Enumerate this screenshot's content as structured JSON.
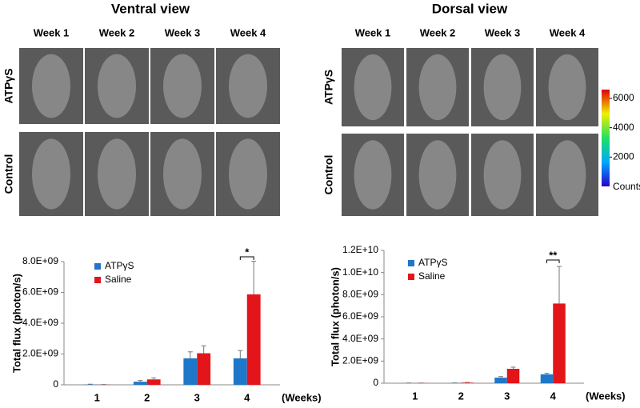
{
  "panels": {
    "ventral_title": "Ventral view",
    "dorsal_title": "Dorsal view",
    "weeks": [
      "Week 1",
      "Week 2",
      "Week 3",
      "Week 4"
    ],
    "rows": [
      "ATPγS",
      "Control"
    ],
    "colorbar": {
      "lim": [
        0,
        6600
      ],
      "ticks": [
        2000,
        4000,
        6000
      ],
      "label": "Counts"
    }
  },
  "chart_data": [
    {
      "type": "bar",
      "ylabel": "Total flux (photon/s)",
      "xlabel": "(Weeks)",
      "categories": [
        "1",
        "2",
        "3",
        "4"
      ],
      "series": [
        {
          "name": "ATPγS",
          "color": "#1f77c9",
          "values": [
            20000000,
            200000000,
            1720000000,
            1720000000
          ],
          "errors": [
            20000000,
            80000000,
            420000000,
            500000000
          ]
        },
        {
          "name": "Saline",
          "color": "#e3151a",
          "values": [
            10000000,
            350000000,
            2050000000,
            5870000000
          ],
          "errors": [
            10000000,
            100000000,
            480000000,
            2150000000
          ]
        }
      ],
      "ylim": [
        0,
        8000000000
      ],
      "yticks": [
        0,
        {
          "value": 2000000000,
          "label": "2.0E+09"
        },
        {
          "value": 4000000000,
          "label": "4.0E+09"
        },
        {
          "value": 6000000000,
          "label": "6.0E+09"
        },
        {
          "value": 8000000000,
          "label": "8.0E+09"
        }
      ],
      "significance": "*"
    },
    {
      "type": "bar",
      "ylabel": "Total flux (photon/s)",
      "xlabel": "(Weeks)",
      "categories": [
        "1",
        "2",
        "3",
        "4"
      ],
      "series": [
        {
          "name": "ATPγS",
          "color": "#1f77c9",
          "values": [
            10000000,
            20000000,
            500000000,
            800000000
          ],
          "errors": [
            10000000,
            10000000,
            100000000,
            100000000
          ]
        },
        {
          "name": "Saline",
          "color": "#e3151a",
          "values": [
            10000000,
            50000000,
            1300000000,
            7200000000
          ],
          "errors": [
            10000000,
            20000000,
            150000000,
            3350000000
          ]
        }
      ],
      "ylim": [
        0,
        12000000000
      ],
      "yticks": [
        0,
        {
          "value": 2000000000,
          "label": "2.0E+09"
        },
        {
          "value": 4000000000,
          "label": "4.0E+09"
        },
        {
          "value": 6000000000,
          "label": "6.0E+09"
        },
        {
          "value": 8000000000,
          "label": "8.0E+09"
        },
        {
          "value": 10000000000,
          "label": "1.0E+10"
        },
        {
          "value": 12000000000,
          "label": "1.2E+10"
        }
      ],
      "significance": "**"
    }
  ]
}
